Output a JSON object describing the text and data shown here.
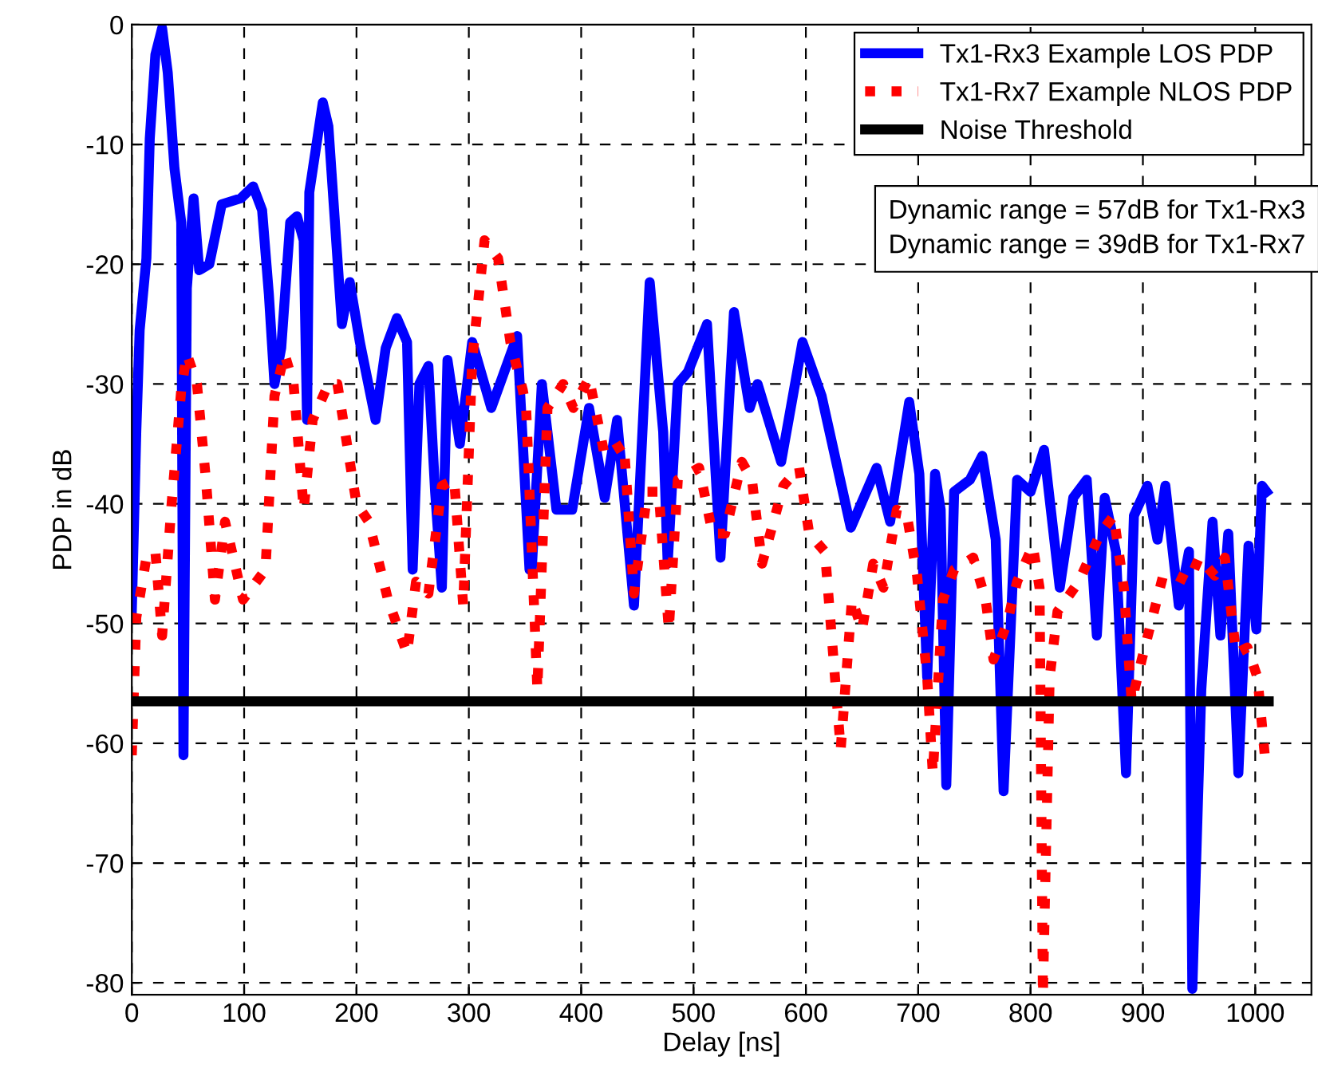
{
  "chart_data": {
    "type": "line",
    "xlabel": "Delay [ns]",
    "ylabel": "PDP in dB",
    "xlim": [
      0,
      1050
    ],
    "ylim": [
      -81,
      0
    ],
    "xticks": [
      0,
      100,
      200,
      300,
      400,
      500,
      600,
      700,
      800,
      900,
      1000
    ],
    "yticks": [
      0,
      -10,
      -20,
      -30,
      -40,
      -50,
      -60,
      -70,
      -80
    ],
    "grid": true,
    "legend": "top right",
    "annotations": [
      "Dynamic range = 57dB for Tx1-Rx3",
      "Dynamic range = 39dB for Tx1-Rx7"
    ],
    "series": [
      {
        "name": "Tx1-Rx3 Example LOS PDP",
        "color": "#0000ff",
        "line_style": "solid",
        "x": [
          0,
          4,
          7,
          13,
          16,
          21,
          27,
          32,
          38,
          44,
          46,
          49,
          55,
          60,
          69,
          80,
          97,
          108,
          116,
          122,
          127,
          133,
          141,
          147,
          153,
          156,
          158,
          170,
          175,
          187,
          194,
          203,
          217,
          226,
          236,
          245,
          250,
          256,
          264,
          270,
          276,
          281,
          292,
          303,
          320,
          343,
          354,
          356,
          365,
          378,
          392,
          407,
          421,
          432,
          447,
          461,
          473,
          477,
          486,
          495,
          512,
          524,
          536,
          550,
          557,
          578,
          597,
          614,
          640,
          663,
          675,
          692,
          701,
          708,
          715,
          720,
          725,
          732,
          746,
          757,
          769,
          776,
          788,
          800,
          812,
          826,
          838,
          850,
          859,
          866,
          876,
          885,
          892,
          904,
          913,
          920,
          932,
          941,
          944,
          952,
          962,
          969,
          976,
          985,
          994,
          1001,
          1006,
          1010
        ],
        "values": [
          -49,
          -34,
          -25.5,
          -19.5,
          -9.5,
          -2.5,
          -0.3,
          -4,
          -12,
          -16.5,
          -61,
          -22,
          -14.5,
          -20.5,
          -20,
          -15,
          -14.5,
          -13.5,
          -15.5,
          -22.5,
          -30,
          -27,
          -16.5,
          -16,
          -18,
          -33,
          -14,
          -6.5,
          -8.5,
          -25,
          -21.5,
          -26.5,
          -33,
          -27,
          -24.5,
          -26.5,
          -45.5,
          -30,
          -28.5,
          -39,
          -47,
          -28,
          -35,
          -26.5,
          -32,
          -26,
          -45.5,
          -45.5,
          -30,
          -40.5,
          -40.5,
          -32,
          -39.5,
          -33,
          -48.5,
          -21.5,
          -34,
          -45,
          -30,
          -29,
          -25,
          -44.5,
          -24,
          -32,
          -30,
          -36.5,
          -26.5,
          -31,
          -42,
          -37,
          -41.5,
          -31.5,
          -37.5,
          -54.5,
          -37.5,
          -40.5,
          -63.5,
          -39,
          -38,
          -36,
          -43,
          -64,
          -38,
          -39,
          -35.5,
          -47,
          -39.5,
          -38,
          -51,
          -39.5,
          -44,
          -62.5,
          -41,
          -38.5,
          -43,
          -38.5,
          -48.5,
          -44,
          -80.5,
          -55.5,
          -41.5,
          -51,
          -42.5,
          -62.5,
          -43.5,
          -50.5,
          -38.5,
          -39
        ]
      },
      {
        "name": "Tx1-Rx7 Example NLOS PDP",
        "color": "#ff0000",
        "line_style": "dotted",
        "x": [
          0,
          4,
          13,
          21,
          27,
          35,
          44,
          49,
          58,
          66,
          74,
          83,
          99,
          119,
          127,
          136,
          144,
          153,
          161,
          175,
          183,
          200,
          211,
          228,
          245,
          253,
          264,
          276,
          287,
          295,
          303,
          314,
          326,
          337,
          348,
          351,
          361,
          370,
          384,
          393,
          407,
          421,
          438,
          447,
          459,
          469,
          478,
          486,
          505,
          517,
          528,
          543,
          552,
          561,
          580,
          594,
          603,
          617,
          631,
          641,
          650,
          660,
          669,
          681,
          690,
          699,
          708,
          713,
          722,
          732,
          749,
          760,
          767,
          779,
          788,
          802,
          808,
          811,
          817,
          824,
          843,
          862,
          874,
          883,
          890,
          899,
          918,
          930,
          941,
          950,
          964,
          973,
          983,
          993,
          1002,
          1009
        ],
        "values": [
          -61,
          -49.5,
          -44.5,
          -44,
          -51,
          -40.5,
          -30.5,
          -27.5,
          -30,
          -38,
          -48,
          -41.5,
          -48,
          -45.5,
          -31,
          -27.5,
          -30,
          -40.5,
          -33,
          -30,
          -30,
          -40,
          -41.5,
          -48,
          -52.5,
          -46.5,
          -47.5,
          -38.5,
          -38,
          -48.5,
          -28,
          -18,
          -19.5,
          -26.5,
          -30.5,
          -32,
          -55.5,
          -32,
          -30,
          -32,
          -29.5,
          -36,
          -35,
          -47.5,
          -39,
          -39,
          -50.5,
          -38,
          -37,
          -42.5,
          -42.5,
          -36.5,
          -38,
          -45,
          -38.5,
          -37,
          -42.5,
          -44,
          -60.5,
          -48,
          -50.5,
          -45,
          -47,
          -40.5,
          -41,
          -46,
          -54.5,
          -62.5,
          -48,
          -45.5,
          -44.5,
          -48,
          -53,
          -50,
          -46.5,
          -43.5,
          -47,
          -81,
          -54.5,
          -49,
          -46.5,
          -42.5,
          -41,
          -47,
          -56.5,
          -53,
          -46,
          -46,
          -46.5,
          -44.5,
          -46,
          -44.5,
          -52.5,
          -52,
          -54.5,
          -61.5
        ]
      },
      {
        "name": "Noise Threshold",
        "color": "#000000",
        "line_style": "solid",
        "x": [
          0,
          1012
        ],
        "values": [
          -56.5,
          -56.5
        ]
      }
    ]
  }
}
